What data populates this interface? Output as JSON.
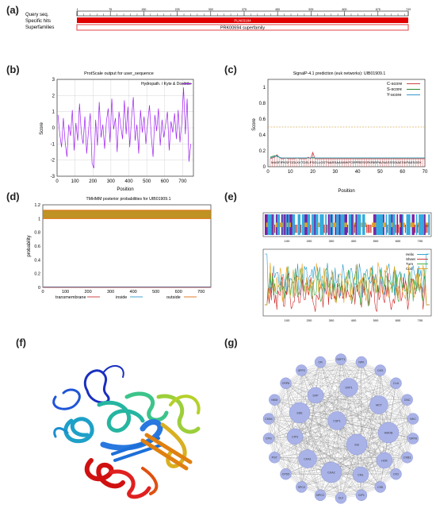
{
  "panels": {
    "a": {
      "letter": "(a)",
      "rows": [
        "Query seq.",
        "Specific hits",
        "Superfamilies"
      ],
      "ticks": [
        "1",
        "75",
        "150",
        "225",
        "300",
        "375",
        "450",
        "525",
        "600",
        "675",
        "743"
      ],
      "hit_label": "PLN03184",
      "superfamily_label": "PRK00694 superfamily",
      "colors": {
        "hit": "#e00000",
        "superfamily": "#f06060"
      }
    },
    "b": {
      "letter": "(b)",
      "title": "ProtScale output for user_sequence",
      "legend": "Hydropath. / Kyte & Doolittle",
      "xlabel": "Position",
      "ylabel": "Score"
    },
    "c": {
      "letter": "(c)",
      "title": "SignalP-4.1 prediction (euk networks): UIB01909.1",
      "xlabel": "Position",
      "ylabel": "Score",
      "legend": [
        "C-score",
        "S-score",
        "Y-score"
      ],
      "sequence": "MASFIPKSFGGLKKTDSLPSGLLGSTNARSAANWKPGRPRESSFKRIRPAVNASSSDIAESKPAESGEK"
    },
    "d": {
      "letter": "(d)",
      "title": "TMHMM posterior probabilities for UIB01909.1",
      "ylabel": "probability",
      "legend": [
        "transmembrane",
        "inside",
        "outside"
      ]
    },
    "e": {
      "letter": "(e)",
      "legend": [
        "Helix",
        "Sheet",
        "Turn",
        "Coil"
      ]
    },
    "f": {
      "letter": "(f)"
    },
    "g": {
      "letter": "(g)",
      "inner_nodes": [
        "SVP",
        "SVP1",
        "SDE",
        "CIP3",
        "CKA1",
        "CKA2",
        "CML",
        "MCT",
        "HMOB",
        "HOK",
        "CSP1",
        "SSI"
      ],
      "outer_nodes": [
        "SEPT1",
        "NPK",
        "CKS",
        "CLA",
        "CNC",
        "NKC",
        "GRF8",
        "CKB1",
        "CK2",
        "CSK",
        "CIP1",
        "CLF",
        "NPCC",
        "SPC2",
        "CPD5",
        "PGT",
        "CPG",
        "CKB4",
        "NKM",
        "CRP6",
        "GFP2",
        "CR"
      ]
    }
  },
  "chart_data": [
    {
      "type": "line",
      "panel": "b",
      "title": "ProtScale output for user_sequence",
      "xlabel": "Position",
      "ylabel": "Score",
      "xlim": [
        0,
        760
      ],
      "ylim": [
        -3,
        3
      ],
      "xticks": [
        0,
        100,
        200,
        300,
        400,
        500,
        600,
        700
      ],
      "yticks": [
        -3,
        -2,
        -1,
        0,
        1,
        2,
        3
      ],
      "grid": true,
      "series": [
        {
          "name": "Hydropath. / Kyte & Doolittle",
          "color": "#a020f0",
          "x": [
            5,
            15,
            25,
            35,
            45,
            55,
            65,
            75,
            85,
            95,
            105,
            115,
            125,
            135,
            145,
            155,
            165,
            175,
            185,
            195,
            205,
            215,
            225,
            235,
            245,
            255,
            265,
            275,
            285,
            295,
            305,
            315,
            325,
            335,
            345,
            355,
            365,
            375,
            385,
            395,
            405,
            415,
            425,
            435,
            445,
            455,
            465,
            475,
            485,
            495,
            505,
            515,
            525,
            535,
            545,
            555,
            565,
            575,
            585,
            595,
            605,
            615,
            625,
            635,
            645,
            655,
            665,
            675,
            685,
            695,
            705,
            715,
            725,
            735,
            745
          ],
          "y": [
            0.8,
            -0.4,
            -1.2,
            0.6,
            -0.9,
            -1.8,
            0.2,
            -0.5,
            1.1,
            -1.4,
            0.3,
            -0.8,
            1.5,
            -0.3,
            -1.0,
            0.7,
            -1.6,
            -0.2,
            0.9,
            -2.2,
            -2.5,
            0.5,
            -1.1,
            1.6,
            -0.6,
            0.2,
            -1.3,
            0.4,
            1.2,
            -0.9,
            1.8,
            -0.1,
            0.6,
            -1.5,
            1.0,
            0.1,
            -0.7,
            1.7,
            -0.4,
            1.3,
            -1.2,
            0.6,
            1.9,
            -0.8,
            0.2,
            -1.6,
            1.1,
            -0.3,
            0.7,
            -1.0,
            0.3,
            1.4,
            -0.5,
            -1.8,
            0.8,
            -0.2,
            1.2,
            -1.1,
            0.5,
            -0.6,
            0.2,
            1.0,
            -1.4,
            0.4,
            -0.3,
            0.9,
            -0.7,
            1.1,
            -0.9,
            0.3,
            2.5,
            -0.4,
            1.8,
            -2.1,
            -1.0
          ]
        }
      ]
    },
    {
      "type": "line",
      "panel": "c",
      "title": "SignalP-4.1 prediction (euk networks): UIB01909.1",
      "xlabel": "Position",
      "ylabel": "Score",
      "xlim": [
        0,
        70
      ],
      "ylim": [
        0,
        1.1
      ],
      "xticks": [
        0,
        10,
        20,
        30,
        40,
        50,
        60,
        70
      ],
      "yticks": [
        0,
        0.2,
        0.4,
        0.6,
        0.8,
        1.0
      ],
      "threshold": 0.5,
      "series": [
        {
          "name": "C-score",
          "color": "#cc4444",
          "y": [
            0.1,
            0.11,
            0.12,
            0.15,
            0.12,
            0.1,
            0.1,
            0.11,
            0.1,
            0.1,
            0.1,
            0.1,
            0.11,
            0.1,
            0.1,
            0.1,
            0.1,
            0.12,
            0.1,
            0.18,
            0.1,
            0.1,
            0.1,
            0.1,
            0.1,
            0.1,
            0.1,
            0.1,
            0.1,
            0.1,
            0.1,
            0.1,
            0.1,
            0.1,
            0.1,
            0.1,
            0.1,
            0.1,
            0.1,
            0.1,
            0.1,
            0.1,
            0.1,
            0.1,
            0.1,
            0.1,
            0.1,
            0.1,
            0.1,
            0.1,
            0.1,
            0.1,
            0.1,
            0.1,
            0.1,
            0.1,
            0.1,
            0.1,
            0.1,
            0.1,
            0.1,
            0.1,
            0.1,
            0.1,
            0.1,
            0.1,
            0.1,
            0.1,
            0.1,
            0.1
          ]
        },
        {
          "name": "S-score",
          "color": "#2a8a2a",
          "y": [
            0.12,
            0.13,
            0.14,
            0.13,
            0.12,
            0.11,
            0.11,
            0.11,
            0.11,
            0.11,
            0.11,
            0.11,
            0.11,
            0.11,
            0.11,
            0.11,
            0.11,
            0.11,
            0.11,
            0.11,
            0.11,
            0.11,
            0.11,
            0.11,
            0.11,
            0.11,
            0.11,
            0.11,
            0.11,
            0.11,
            0.11,
            0.11,
            0.11,
            0.11,
            0.11,
            0.11,
            0.11,
            0.11,
            0.11,
            0.11,
            0.11,
            0.11,
            0.11,
            0.11,
            0.11,
            0.11,
            0.11,
            0.11,
            0.11,
            0.11,
            0.11,
            0.11,
            0.11,
            0.11,
            0.11,
            0.11,
            0.11,
            0.11,
            0.11,
            0.11,
            0.11,
            0.11,
            0.11,
            0.11,
            0.11,
            0.11,
            0.11,
            0.11,
            0.11,
            0.11
          ]
        },
        {
          "name": "Y-score",
          "color": "#3399cc",
          "y": [
            0.11,
            0.12,
            0.13,
            0.14,
            0.12,
            0.11,
            0.11,
            0.11,
            0.11,
            0.11,
            0.11,
            0.11,
            0.11,
            0.11,
            0.11,
            0.11,
            0.11,
            0.11,
            0.11,
            0.12,
            0.11,
            0.11,
            0.11,
            0.11,
            0.11,
            0.11,
            0.11,
            0.11,
            0.11,
            0.11,
            0.11,
            0.11,
            0.11,
            0.11,
            0.11,
            0.11,
            0.11,
            0.11,
            0.11,
            0.11,
            0.11,
            0.11,
            0.11,
            0.11,
            0.11,
            0.11,
            0.11,
            0.11,
            0.11,
            0.11,
            0.11,
            0.11,
            0.11,
            0.11,
            0.11,
            0.11,
            0.11,
            0.11,
            0.11,
            0.11,
            0.11,
            0.11,
            0.11,
            0.11,
            0.11,
            0.11,
            0.11,
            0.11,
            0.11,
            0.11
          ]
        }
      ]
    },
    {
      "type": "line",
      "panel": "d",
      "title": "TMHMM posterior probabilities for UIB01909.1",
      "ylabel": "probability",
      "xlim": [
        0,
        743
      ],
      "ylim": [
        0,
        1.2
      ],
      "xticks": [
        0,
        100,
        200,
        300,
        400,
        500,
        600,
        700
      ],
      "yticks": [
        0,
        0.2,
        0.4,
        0.6,
        0.8,
        1,
        1.2
      ],
      "series": [
        {
          "name": "transmembrane",
          "color": "#cc3333",
          "y": 0
        },
        {
          "name": "inside",
          "color": "#3399cc",
          "y": 0
        },
        {
          "name": "outside",
          "color": "#e07010",
          "y": 1
        }
      ]
    },
    {
      "type": "line",
      "panel": "e",
      "xlim": [
        0,
        743
      ],
      "xticks": [
        100,
        200,
        300,
        400,
        500,
        600,
        700
      ],
      "series": [
        {
          "name": "Helix",
          "color": "#2299cc"
        },
        {
          "name": "Sheet",
          "color": "#cc2222"
        },
        {
          "name": "Turn",
          "color": "#33aa33"
        },
        {
          "name": "Coil",
          "color": "#e8a020"
        }
      ]
    }
  ]
}
